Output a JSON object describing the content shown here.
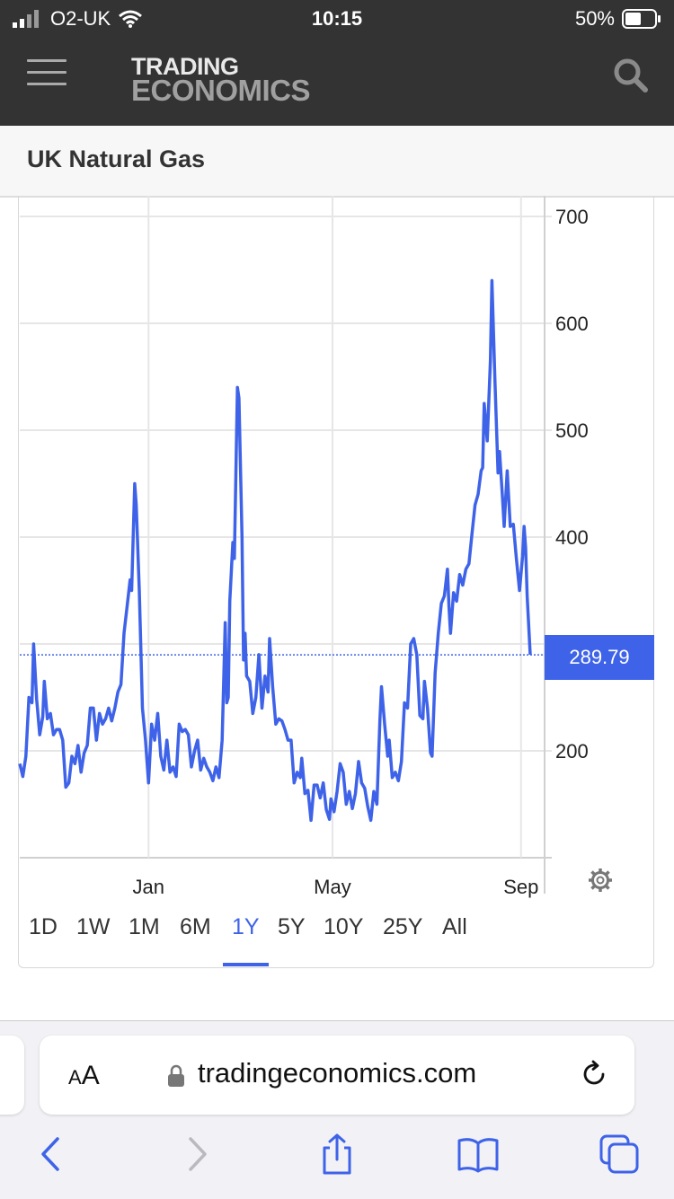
{
  "status_bar": {
    "carrier": "O2-UK",
    "time": "10:15",
    "battery": "50%",
    "icons": [
      "signal-icon",
      "wifi-icon",
      "battery-icon"
    ]
  },
  "header": {
    "logo_line1": "TRADING",
    "logo_line2": "ECONOMICS",
    "icons": [
      "menu-icon",
      "search-icon"
    ]
  },
  "page": {
    "title": "UK Natural Gas"
  },
  "chart_data": {
    "type": "line",
    "title": "",
    "xlabel": "",
    "ylabel": "",
    "ylim": [
      100,
      700
    ],
    "y_ticks": [
      "700",
      "600",
      "500",
      "400",
      "200"
    ],
    "x_ticks": [
      {
        "label": "Jan",
        "x": 84
      },
      {
        "label": "May",
        "x": 204
      },
      {
        "label": "Sep",
        "x": 327
      }
    ],
    "grid": true,
    "current_value": "289.79",
    "line_color": "#3e63e8",
    "series": [
      {
        "values": [
          [
            0,
            188
          ],
          [
            2,
            176
          ],
          [
            4,
            195
          ],
          [
            6,
            250
          ],
          [
            8,
            245
          ],
          [
            9,
            300
          ],
          [
            11,
            248
          ],
          [
            13,
            215
          ],
          [
            15,
            232
          ],
          [
            16,
            265
          ],
          [
            18,
            230
          ],
          [
            20,
            235
          ],
          [
            22,
            215
          ],
          [
            24,
            220
          ],
          [
            26,
            220
          ],
          [
            28,
            210
          ],
          [
            30,
            166
          ],
          [
            32,
            170
          ],
          [
            34,
            195
          ],
          [
            36,
            188
          ],
          [
            38,
            205
          ],
          [
            40,
            180
          ],
          [
            42,
            198
          ],
          [
            44,
            205
          ],
          [
            46,
            240
          ],
          [
            48,
            240
          ],
          [
            50,
            210
          ],
          [
            52,
            235
          ],
          [
            54,
            225
          ],
          [
            56,
            230
          ],
          [
            58,
            240
          ],
          [
            60,
            228
          ],
          [
            62,
            240
          ],
          [
            64,
            255
          ],
          [
            66,
            262
          ],
          [
            68,
            310
          ],
          [
            70,
            335
          ],
          [
            72,
            360
          ],
          [
            73,
            350
          ],
          [
            75,
            450
          ],
          [
            76,
            430
          ],
          [
            78,
            350
          ],
          [
            80,
            240
          ],
          [
            82,
            210
          ],
          [
            84,
            170
          ],
          [
            86,
            225
          ],
          [
            88,
            210
          ],
          [
            90,
            235
          ],
          [
            92,
            195
          ],
          [
            94,
            182
          ],
          [
            96,
            210
          ],
          [
            98,
            180
          ],
          [
            100,
            185
          ],
          [
            102,
            176
          ],
          [
            104,
            225
          ],
          [
            106,
            218
          ],
          [
            108,
            220
          ],
          [
            110,
            215
          ],
          [
            112,
            185
          ],
          [
            114,
            200
          ],
          [
            116,
            210
          ],
          [
            118,
            182
          ],
          [
            120,
            193
          ],
          [
            122,
            185
          ],
          [
            124,
            180
          ],
          [
            126,
            172
          ],
          [
            128,
            185
          ],
          [
            130,
            175
          ],
          [
            132,
            210
          ],
          [
            134,
            320
          ],
          [
            135,
            245
          ],
          [
            136,
            250
          ],
          [
            137,
            340
          ],
          [
            139,
            395
          ],
          [
            140,
            380
          ],
          [
            142,
            540
          ],
          [
            143,
            530
          ],
          [
            145,
            400
          ],
          [
            146,
            285
          ],
          [
            147,
            310
          ],
          [
            148,
            270
          ],
          [
            150,
            265
          ],
          [
            152,
            235
          ],
          [
            154,
            250
          ],
          [
            156,
            290
          ],
          [
            158,
            240
          ],
          [
            160,
            270
          ],
          [
            162,
            255
          ],
          [
            163,
            305
          ],
          [
            165,
            260
          ],
          [
            167,
            225
          ],
          [
            169,
            230
          ],
          [
            171,
            228
          ],
          [
            173,
            220
          ],
          [
            175,
            210
          ],
          [
            177,
            210
          ],
          [
            179,
            170
          ],
          [
            181,
            180
          ],
          [
            183,
            175
          ],
          [
            184,
            193
          ],
          [
            186,
            160
          ],
          [
            188,
            163
          ],
          [
            190,
            135
          ],
          [
            192,
            168
          ],
          [
            194,
            168
          ],
          [
            196,
            156
          ],
          [
            198,
            170
          ],
          [
            200,
            145
          ],
          [
            202,
            136
          ],
          [
            203,
            155
          ],
          [
            205,
            143
          ],
          [
            207,
            162
          ],
          [
            209,
            188
          ],
          [
            211,
            180
          ],
          [
            213,
            150
          ],
          [
            215,
            162
          ],
          [
            217,
            146
          ],
          [
            219,
            160
          ],
          [
            221,
            190
          ],
          [
            223,
            170
          ],
          [
            225,
            165
          ],
          [
            227,
            148
          ],
          [
            229,
            135
          ],
          [
            231,
            162
          ],
          [
            233,
            150
          ],
          [
            235,
            230
          ],
          [
            236,
            260
          ],
          [
            238,
            225
          ],
          [
            240,
            195
          ],
          [
            241,
            210
          ],
          [
            243,
            175
          ],
          [
            245,
            180
          ],
          [
            247,
            172
          ],
          [
            249,
            190
          ],
          [
            251,
            245
          ],
          [
            253,
            240
          ],
          [
            255,
            300
          ],
          [
            257,
            305
          ],
          [
            259,
            290
          ],
          [
            261,
            233
          ],
          [
            263,
            230
          ],
          [
            264,
            265
          ],
          [
            266,
            240
          ],
          [
            268,
            198
          ],
          [
            269,
            195
          ],
          [
            271,
            273
          ],
          [
            273,
            310
          ],
          [
            275,
            338
          ],
          [
            277,
            345
          ],
          [
            279,
            370
          ],
          [
            280,
            335
          ],
          [
            281,
            310
          ],
          [
            283,
            348
          ],
          [
            285,
            340
          ],
          [
            287,
            365
          ],
          [
            289,
            355
          ],
          [
            291,
            370
          ],
          [
            293,
            375
          ],
          [
            295,
            403
          ],
          [
            297,
            430
          ],
          [
            299,
            440
          ],
          [
            301,
            462
          ],
          [
            302,
            465
          ],
          [
            303,
            525
          ],
          [
            305,
            490
          ],
          [
            307,
            565
          ],
          [
            308,
            640
          ],
          [
            310,
            545
          ],
          [
            312,
            460
          ],
          [
            313,
            480
          ],
          [
            315,
            435
          ],
          [
            316,
            410
          ],
          [
            318,
            462
          ],
          [
            320,
            410
          ],
          [
            322,
            412
          ],
          [
            324,
            380
          ],
          [
            326,
            350
          ],
          [
            328,
            382
          ],
          [
            329,
            410
          ],
          [
            330,
            390
          ],
          [
            331,
            345
          ],
          [
            333,
            290
          ]
        ]
      }
    ]
  },
  "range_buttons": [
    "1D",
    "1W",
    "1M",
    "6M",
    "1Y",
    "5Y",
    "10Y",
    "25Y",
    "All"
  ],
  "active_range": "1Y",
  "browser": {
    "text_size": {
      "small": "A",
      "big": "A"
    },
    "url": "tradingeconomics.com",
    "icons": [
      "lock-icon",
      "reload-icon",
      "back-icon",
      "forward-icon",
      "share-icon",
      "bookmarks-icon",
      "tabs-icon"
    ]
  }
}
